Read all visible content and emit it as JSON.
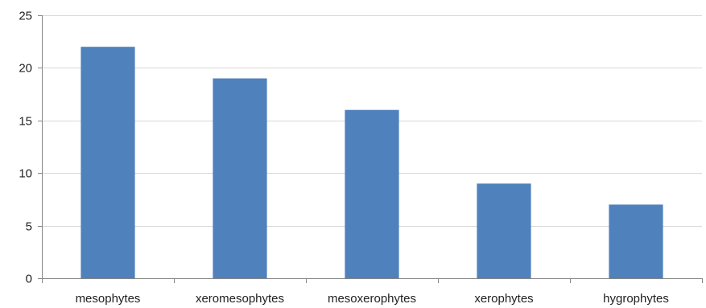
{
  "chart_data": {
    "type": "bar",
    "title": "",
    "xlabel": "",
    "ylabel": "",
    "categories": [
      "mesophytes",
      "xeromesophytes",
      "mesoxerophytes",
      "xerophytes",
      "hygrophytes"
    ],
    "values": [
      22,
      19,
      16,
      9,
      7
    ],
    "ylim": [
      0,
      25
    ],
    "yticks": [
      0,
      5,
      10,
      15,
      20,
      25
    ],
    "grid": true,
    "legend": "none",
    "colors": {
      "bar": "#4f81bd",
      "grid": "#d9d9d9",
      "axis": "#868686",
      "text": "#222222"
    }
  }
}
